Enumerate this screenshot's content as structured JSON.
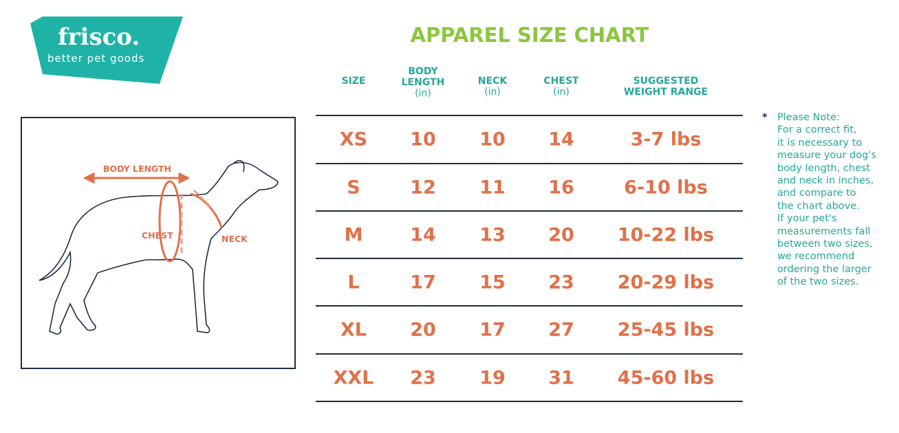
{
  "logo": {
    "brand": "frisco.",
    "tagline": "better pet goods",
    "color": "#1fb3a8"
  },
  "title": "APPAREL SIZE CHART",
  "headers": [
    {
      "label": "SIZE",
      "unit": ""
    },
    {
      "label": "BODY LENGTH",
      "unit": "(in)"
    },
    {
      "label": "NECK",
      "unit": "(in)"
    },
    {
      "label": "CHEST",
      "unit": "(in)"
    },
    {
      "label": "SUGGESTED WEIGHT RANGE",
      "unit": ""
    }
  ],
  "rows": [
    [
      "XS",
      "10",
      "10",
      "14",
      "3-7 lbs"
    ],
    [
      "S",
      "12",
      "11",
      "16",
      "6-10 lbs"
    ],
    [
      "M",
      "14",
      "13",
      "20",
      "10-22 lbs"
    ],
    [
      "L",
      "17",
      "15",
      "23",
      "20-29 lbs"
    ],
    [
      "XL",
      "20",
      "17",
      "27",
      "25-45 lbs"
    ],
    [
      "XXL",
      "23",
      "19",
      "31",
      "45-60 lbs"
    ]
  ],
  "diagram": {
    "body_length": "BODY LENGTH",
    "chest": "CHEST",
    "neck": "NECK"
  },
  "note": {
    "asterisk": "*",
    "lines": [
      "Please Note:",
      "For a correct fit,",
      "it is necessary to",
      "measure your dog's",
      "body length, chest",
      "and neck in inches,",
      "and compare to",
      "the chart above.",
      "If your pet's",
      "measurements fall",
      "between two sizes,",
      "we recommend",
      "ordering the larger",
      "of the two sizes."
    ]
  },
  "colors": {
    "title": "#8cc63f",
    "header": "#26a79b",
    "values": "#e0714a",
    "lines": "#1d2d44"
  }
}
